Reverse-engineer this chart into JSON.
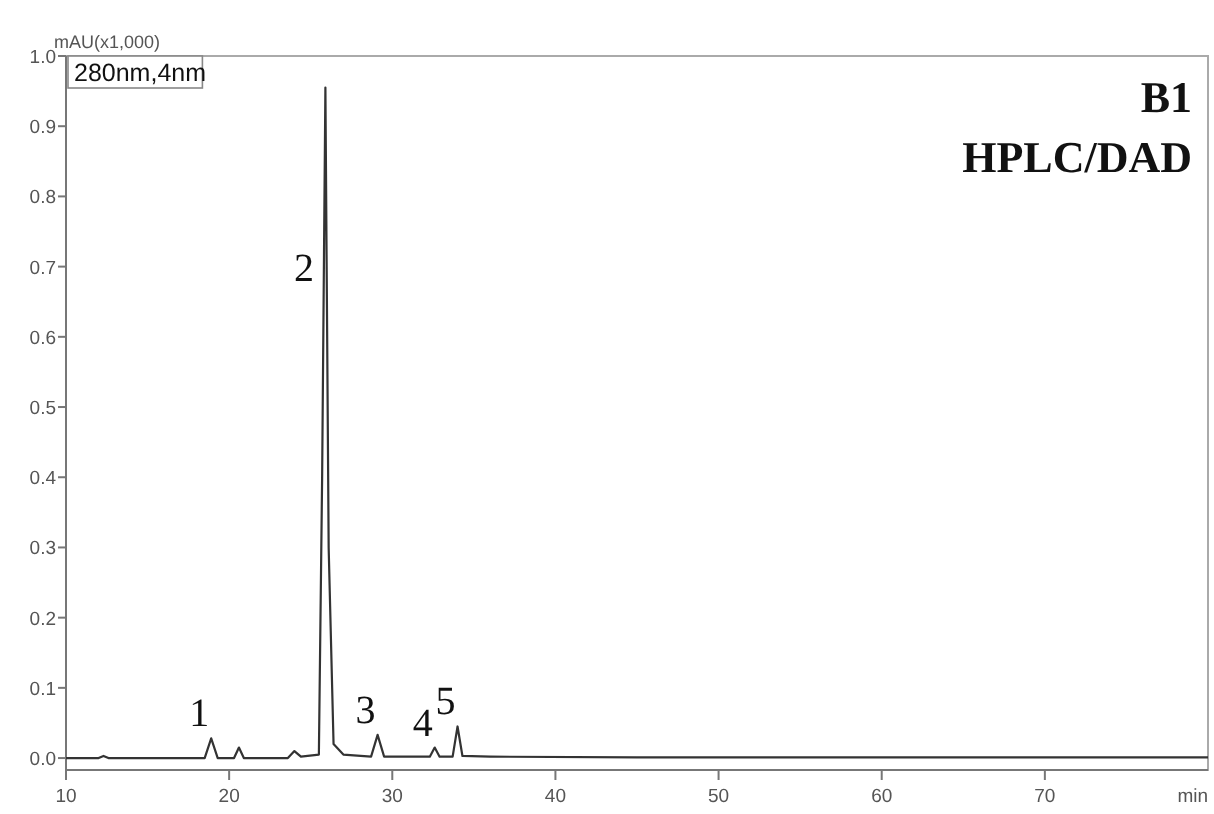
{
  "chart_data": {
    "type": "line",
    "xlabel": "min",
    "ylabel": "mAU(x1,000)",
    "x": [
      10,
      12,
      12.3,
      12.6,
      15,
      18.5,
      18.9,
      19.3,
      20.3,
      20.6,
      20.9,
      23.6,
      24,
      24.4,
      25.5,
      25.7,
      25.9,
      26.1,
      26.4,
      27,
      28.7,
      29.1,
      29.5,
      32.3,
      32.6,
      32.9,
      33.7,
      34,
      34.3,
      36,
      45,
      55,
      65,
      80
    ],
    "series": [
      {
        "color": "#333333",
        "values": [
          0,
          0,
          0.003,
          0,
          0,
          0,
          0.028,
          0,
          0,
          0.015,
          0,
          0,
          0.01,
          0.002,
          0.005,
          0.4,
          0.955,
          0.3,
          0.02,
          0.005,
          0.002,
          0.033,
          0.002,
          0.002,
          0.015,
          0.002,
          0.002,
          0.045,
          0.003,
          0.002,
          0.001,
          0.001,
          0.001,
          0.001
        ]
      }
    ],
    "xlim": [
      10,
      80
    ],
    "xticks": [
      10,
      20,
      30,
      40,
      50,
      60,
      70
    ],
    "ylim": [
      -0.017,
      1.0
    ],
    "yticks": [
      {
        "value": 0,
        "label": "0.0"
      },
      0.1,
      0.2,
      0.3,
      0.4,
      0.5,
      0.6,
      0.7,
      0.8,
      0.9,
      {
        "value": 1,
        "label": "1.0"
      }
    ],
    "grid": false,
    "marker": "none",
    "line_style": "solid",
    "annotations": [
      "280nm,4nm",
      "B1",
      "HPLC/DAD",
      {
        "text": "1",
        "x": 18.9,
        "y": 0.028
      },
      {
        "text": "2",
        "x": 25.81,
        "y": 0.7
      },
      {
        "text": "3",
        "x": 29.1,
        "y": 0.033
      },
      {
        "text": "4",
        "x": 32.6,
        "y": 0.015
      },
      {
        "text": "5",
        "x": 34,
        "y": 0.045
      }
    ]
  }
}
